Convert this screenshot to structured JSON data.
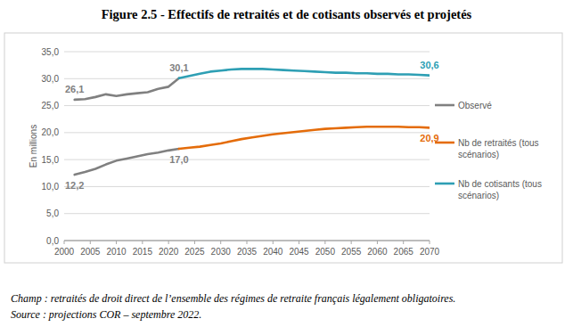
{
  "chart_data": {
    "type": "line",
    "title": "Figure 2.5 - Effectifs de retraités et de cotisants observés et projetés",
    "y_label": "En millions",
    "notes": [
      "Champ : retraités de droit direct de l’ensemble des régimes de retraite français légalement obligatoires.",
      "Source : projections COR – septembre 2022."
    ],
    "x": [
      2002,
      2004,
      2006,
      2008,
      2010,
      2012,
      2014,
      2016,
      2018,
      2020,
      2022,
      2024,
      2026,
      2028,
      2030,
      2032,
      2034,
      2036,
      2038,
      2040,
      2042,
      2044,
      2046,
      2048,
      2050,
      2052,
      2054,
      2056,
      2058,
      2060,
      2062,
      2064,
      2066,
      2068,
      2070
    ],
    "xlim": [
      2000,
      2070
    ],
    "xticks": [
      2000,
      2005,
      2010,
      2015,
      2020,
      2025,
      2030,
      2035,
      2040,
      2045,
      2050,
      2055,
      2060,
      2065,
      2070
    ],
    "ylim": [
      0,
      35
    ],
    "yticks": [
      {
        "value": 0,
        "label": "0,0"
      },
      {
        "value": 5,
        "label": "5,0"
      },
      {
        "value": 10,
        "label": "10,0"
      },
      {
        "value": 15,
        "label": "15,0"
      },
      {
        "value": 20,
        "label": "20,0"
      },
      {
        "value": 25,
        "label": "25,0"
      },
      {
        "value": 30,
        "label": "30,0"
      },
      {
        "value": 35,
        "label": "35,0"
      }
    ],
    "grid": true,
    "legend": "right",
    "series": [
      {
        "name": "Observé",
        "color": "#808080",
        "values": [
          26.1,
          26.2,
          26.6,
          27.1,
          26.8,
          27.1,
          27.3,
          27.5,
          28.1,
          28.5,
          30.1,
          null,
          null,
          null,
          null,
          null,
          null,
          null,
          null,
          null,
          null,
          null,
          null,
          null,
          null,
          null,
          null,
          null,
          null,
          null,
          null,
          null,
          null,
          null,
          null
        ]
      },
      {
        "name": "Observé",
        "color": "#808080",
        "values": [
          12.2,
          12.7,
          13.3,
          14.1,
          14.8,
          15.2,
          15.6,
          16.0,
          16.3,
          16.7,
          17.0,
          null,
          null,
          null,
          null,
          null,
          null,
          null,
          null,
          null,
          null,
          null,
          null,
          null,
          null,
          null,
          null,
          null,
          null,
          null,
          null,
          null,
          null,
          null,
          null
        ]
      },
      {
        "name": "Nb de retraités (tous scénarios)",
        "color": "#e46c0a",
        "values": [
          null,
          null,
          null,
          null,
          null,
          null,
          null,
          null,
          null,
          null,
          17.0,
          17.2,
          17.4,
          17.7,
          18.0,
          18.4,
          18.8,
          19.1,
          19.4,
          19.7,
          19.9,
          20.1,
          20.3,
          20.5,
          20.7,
          20.8,
          20.9,
          21.0,
          21.1,
          21.1,
          21.1,
          21.1,
          21.0,
          21.0,
          20.9
        ]
      },
      {
        "name": "Nb de cotisants (tous scénarios)",
        "color": "#2e9fb4",
        "values": [
          null,
          null,
          null,
          null,
          null,
          null,
          null,
          null,
          null,
          null,
          30.1,
          30.5,
          30.9,
          31.3,
          31.5,
          31.7,
          31.8,
          31.8,
          31.8,
          31.7,
          31.6,
          31.5,
          31.4,
          31.3,
          31.2,
          31.1,
          31.1,
          31.0,
          31.0,
          30.9,
          30.9,
          30.8,
          30.8,
          30.7,
          30.6
        ]
      }
    ],
    "annotations": [
      {
        "text": "26,1",
        "x": 2002,
        "y": 26.1,
        "color": "#808080"
      },
      {
        "text": "30,1",
        "x": 2022,
        "y": 30.1,
        "color": "#808080"
      },
      {
        "text": "30,6",
        "x": 2070,
        "y": 30.6,
        "color": "#2e9fb4"
      },
      {
        "text": "12,2",
        "x": 2002,
        "y": 12.2,
        "color": "#808080"
      },
      {
        "text": "17,0",
        "x": 2022,
        "y": 17.0,
        "color": "#808080"
      },
      {
        "text": "20,9",
        "x": 2070,
        "y": 20.9,
        "color": "#e46c0a"
      }
    ]
  }
}
